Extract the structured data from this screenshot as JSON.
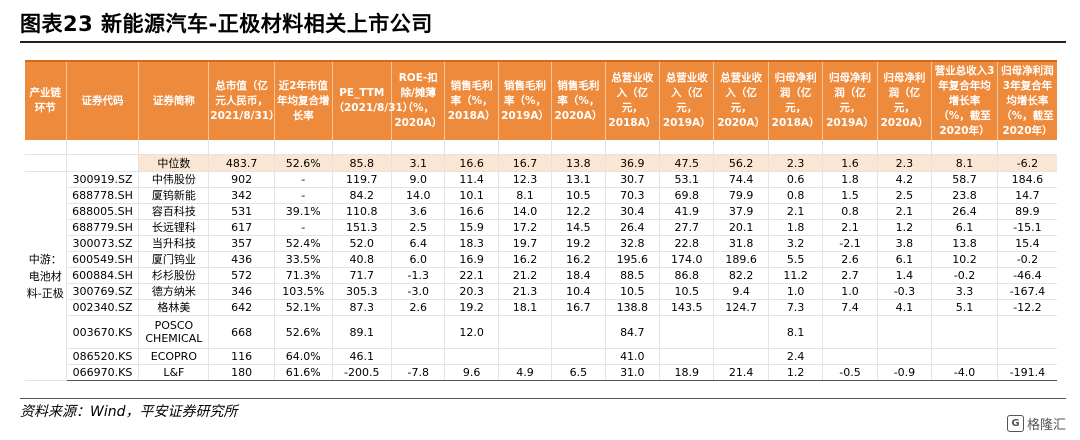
{
  "title": "图表23    新能源汽车-正极材料相关上市公司",
  "headers": [
    "产业链环节",
    "证券代码",
    "证券简称",
    "总市值（亿元人民币，2021/8/31）",
    "近2年市值年均复合增长率",
    "PE_TTM（2021/8/31）",
    "ROE-扣除/摊薄（%，2020A）",
    "销售毛利率（%，2018A）",
    "销售毛利率（%，2019A）",
    "销售毛利率（%，2020A）",
    "总营业收入（亿元，2018A）",
    "总营业收入（亿元，2019A）",
    "总营业收入（亿元，2020A）",
    "归母净利润（亿元，2018A）",
    "归母净利润（亿元，2019A）",
    "归母净利润（亿元，2020A）",
    "营业总收入3年复合年均增长率（%，截至2020年）",
    "归母净利润3年复合年均增长率（%，截至2020年）"
  ],
  "median": {
    "label": "中位数",
    "cells": [
      "483.7",
      "52.6%",
      "85.8",
      "3.1",
      "16.6",
      "16.7",
      "13.8",
      "36.9",
      "47.5",
      "56.2",
      "2.3",
      "1.6",
      "2.3",
      "8.1",
      "-6.2"
    ]
  },
  "group_label": "中游：电池材料-正极",
  "rows": [
    {
      "code": "300919.SZ",
      "name": "中伟股份",
      "cells": [
        "902",
        "-",
        "119.7",
        "9.0",
        "11.4",
        "12.3",
        "13.1",
        "30.7",
        "53.1",
        "74.4",
        "0.6",
        "1.8",
        "4.2",
        "58.7",
        "184.6"
      ]
    },
    {
      "code": "688778.SH",
      "name": "厦钨新能",
      "cells": [
        "342",
        "-",
        "84.2",
        "14.0",
        "10.1",
        "8.1",
        "10.5",
        "70.3",
        "69.8",
        "79.9",
        "0.8",
        "1.5",
        "2.5",
        "23.8",
        "14.7"
      ]
    },
    {
      "code": "688005.SH",
      "name": "容百科技",
      "cells": [
        "531",
        "39.1%",
        "110.8",
        "3.6",
        "16.6",
        "14.0",
        "12.2",
        "30.4",
        "41.9",
        "37.9",
        "2.1",
        "0.8",
        "2.1",
        "26.4",
        "89.9"
      ]
    },
    {
      "code": "688779.SH",
      "name": "长远锂科",
      "cells": [
        "617",
        "-",
        "151.3",
        "2.5",
        "15.9",
        "17.2",
        "14.5",
        "26.4",
        "27.7",
        "20.1",
        "1.8",
        "2.1",
        "1.2",
        "6.1",
        "-15.1"
      ]
    },
    {
      "code": "300073.SZ",
      "name": "当升科技",
      "cells": [
        "357",
        "52.4%",
        "52.0",
        "6.4",
        "18.3",
        "19.7",
        "19.2",
        "32.8",
        "22.8",
        "31.8",
        "3.2",
        "-2.1",
        "3.8",
        "13.8",
        "15.4"
      ]
    },
    {
      "code": "600549.SH",
      "name": "厦门钨业",
      "cells": [
        "436",
        "33.5%",
        "40.8",
        "6.0",
        "16.9",
        "16.2",
        "16.2",
        "195.6",
        "174.0",
        "189.6",
        "5.5",
        "2.6",
        "6.1",
        "10.2",
        "-0.2"
      ]
    },
    {
      "code": "600884.SH",
      "name": "杉杉股份",
      "cells": [
        "572",
        "71.3%",
        "71.7",
        "-1.3",
        "22.1",
        "21.2",
        "18.4",
        "88.5",
        "86.8",
        "82.2",
        "11.2",
        "2.7",
        "1.4",
        "-0.2",
        "-46.4"
      ]
    },
    {
      "code": "300769.SZ",
      "name": "德方纳米",
      "cells": [
        "346",
        "103.5%",
        "305.3",
        "-3.0",
        "20.3",
        "21.3",
        "10.4",
        "10.5",
        "10.5",
        "9.4",
        "1.0",
        "1.0",
        "-0.3",
        "3.3",
        "-167.4"
      ]
    },
    {
      "code": "002340.SZ",
      "name": "格林美",
      "cells": [
        "642",
        "52.1%",
        "87.3",
        "2.6",
        "19.2",
        "18.1",
        "16.7",
        "138.8",
        "143.5",
        "124.7",
        "7.3",
        "7.4",
        "4.1",
        "5.1",
        "-12.2"
      ]
    },
    {
      "code": "003670.KS",
      "name": "POSCO CHEMICAL",
      "tall": true,
      "cells": [
        "668",
        "52.6%",
        "89.1",
        "",
        "12.0",
        "",
        "",
        "84.7",
        "",
        "",
        "8.1",
        "",
        "",
        "",
        ""
      ]
    },
    {
      "code": "086520.KS",
      "name": "ECOPRO",
      "cells": [
        "116",
        "64.0%",
        "46.1",
        "",
        "",
        "",
        "",
        "41.0",
        "",
        "",
        "2.4",
        "",
        "",
        "",
        ""
      ]
    },
    {
      "code": "066970.KS",
      "name": "L&F",
      "cells": [
        "180",
        "61.6%",
        "-200.5",
        "-7.8",
        "9.6",
        "4.9",
        "6.5",
        "31.0",
        "18.9",
        "21.4",
        "1.2",
        "-0.5",
        "-0.9",
        "-4.0",
        "-191.4"
      ]
    }
  ],
  "source": "资料来源：Wind，平安证券研究所",
  "watermark": "格隆汇"
}
